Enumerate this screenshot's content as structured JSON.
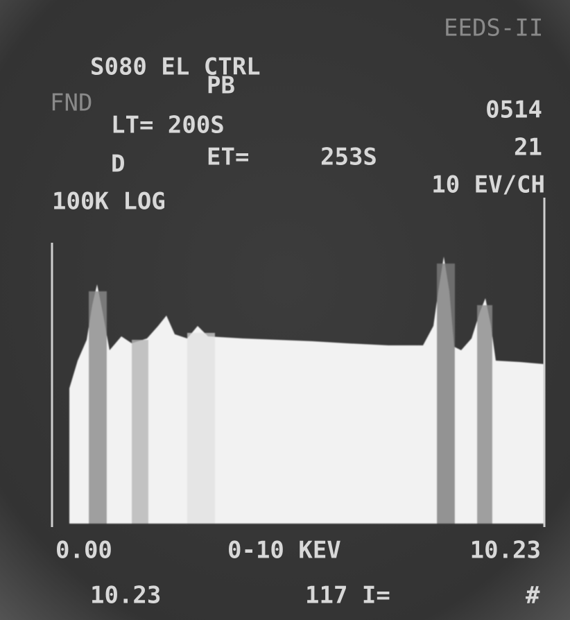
{
  "header": {
    "system": "EEDS-II",
    "id": "S080 EL CTRL",
    "label": "FND",
    "element": "PB",
    "live_time": "LT= 200S",
    "mode": "D",
    "elapsed_label": "ET=",
    "elapsed": "253S",
    "cps": "0514",
    "count": "21",
    "scale": "10 EV/CH",
    "vertical": "100K LOG"
  },
  "footer": {
    "start": "0.00",
    "range": "0-10 KEV",
    "end": "10.23",
    "cursor": "10.23",
    "cursor_count": "117 I=",
    "marker": "#"
  }
}
